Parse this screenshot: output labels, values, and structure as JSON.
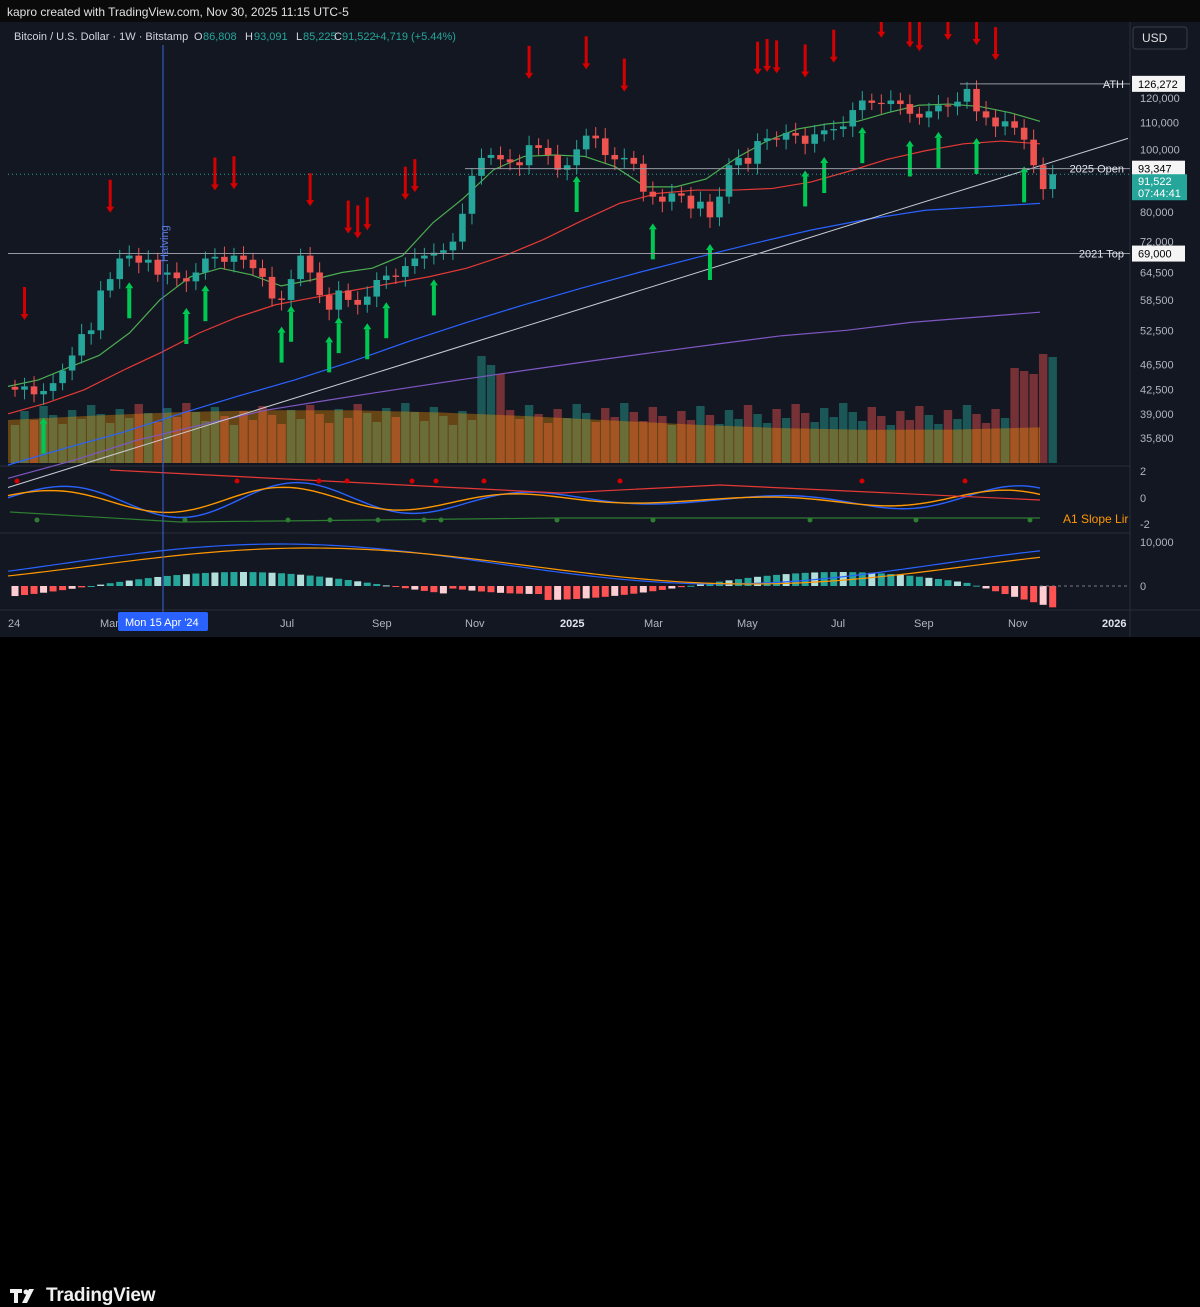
{
  "credit": "kapro created with TradingView.com, Nov 30, 2025 11:15 UTC-5",
  "brand": "TradingView",
  "symbol_header": {
    "name": "Bitcoin / U.S. Dollar · 1W · Bitstamp",
    "open_label": "O",
    "open": "86,808",
    "high_label": "H",
    "high": "93,091",
    "low_label": "L",
    "low": "85,225",
    "close_label": "C",
    "close": "91,522",
    "change": "+4,719 (+5.44%)"
  },
  "currency_button": "USD",
  "halving_label": "Halving",
  "indicator_label": "A1 Slope Lir",
  "chart_data": {
    "type": "candlestick",
    "timeframe": "1W",
    "price_axis": {
      "scale": "log",
      "ticks": [
        120000,
        110000,
        100000,
        80000,
        72000,
        64500,
        58500,
        52500,
        46500,
        42500,
        39000,
        35800
      ],
      "tick_labels": [
        "120,000",
        "110,000",
        "100,000",
        "80,000",
        "72,000",
        "64,500",
        "58,500",
        "52,500",
        "46,500",
        "42,500",
        "39,000",
        "35,800"
      ]
    },
    "time_axis": [
      "24",
      "Mar",
      "Jul",
      "Sep",
      "Nov",
      "2025",
      "Mar",
      "May",
      "Jul",
      "Sep",
      "Nov",
      "2026"
    ],
    "crosshair_date": "Mon 15 Apr '24",
    "levels": [
      {
        "label": "ATH",
        "value": 126272,
        "value_label": "126,272"
      },
      {
        "label": "2025 Open",
        "value": 93347,
        "value_label": "93,347"
      },
      {
        "label": "2021 Top",
        "value": 69000,
        "value_label": "69,000"
      }
    ],
    "current_price": {
      "value": 91522,
      "label": "91,522",
      "countdown": "07:44:41"
    },
    "weekly_closes": [
      42500,
      43000,
      41800,
      42300,
      43500,
      45500,
      48000,
      51800,
      52500,
      60500,
      63000,
      67800,
      68500,
      66800,
      67500,
      64000,
      64500,
      63200,
      62500,
      64500,
      67800,
      68200,
      67000,
      68500,
      67500,
      65500,
      63500,
      58800,
      58500,
      63000,
      68500,
      64500,
      59500,
      56500,
      60500,
      58500,
      57500,
      59200,
      62800,
      63800,
      63500,
      66000,
      67800,
      68500,
      69200,
      69800,
      72000,
      79500,
      91000,
      97000,
      98000,
      96500,
      95500,
      94500,
      101500,
      100500,
      98000,
      93000,
      94500,
      100000,
      105000,
      104000,
      98000,
      96500,
      97000,
      95000,
      86000,
      84500,
      83000,
      85500,
      84800,
      81000,
      83000,
      78500,
      84500,
      94500,
      97000,
      95000,
      103000,
      104000,
      103500,
      106000,
      105000,
      102000,
      105500,
      107000,
      107500,
      108500,
      115000,
      119000,
      118000,
      117500,
      119000,
      117500,
      113500,
      112000,
      114500,
      117000,
      116500,
      118500,
      124000,
      114500,
      112000,
      108500,
      110500,
      108000,
      103500,
      94500,
      86800,
      91522
    ],
    "sma_20_levels": [
      43000,
      44000,
      46000,
      48000,
      52000,
      58500,
      63500,
      65500,
      64000,
      61500,
      62800,
      64500,
      65500,
      68500,
      77000,
      84000,
      93000,
      97500,
      98000,
      97500,
      94000,
      87500,
      87500,
      90000,
      97000,
      103000,
      107500,
      109500,
      110500,
      114000,
      117000,
      117500,
      116500,
      114000,
      110500
    ],
    "sma_50_levels": [
      39000,
      40500,
      42500,
      45500,
      48500,
      52000,
      55000,
      57500,
      59000,
      60500,
      62000,
      63500,
      65500,
      68500,
      72500,
      77500,
      82500,
      85500,
      86500,
      86500,
      87000,
      89000,
      92500,
      96500,
      99500,
      102000,
      103000,
      102000
    ],
    "sma_100_levels": [
      32500,
      34500,
      36500,
      39000,
      41500,
      44000,
      47000,
      50500,
      54000,
      57500,
      61000,
      64500,
      68000,
      71500,
      75000,
      78000,
      80500,
      81500,
      82500
    ],
    "sma_200_levels": [
      31000,
      33000,
      35500,
      37500,
      39500,
      41000,
      42500,
      44000,
      45500,
      47000,
      48500,
      50000,
      51500,
      52500,
      54000,
      55000,
      56000
    ],
    "trendline_levels": [
      30000,
      38000,
      48000,
      60000,
      75000,
      90000,
      104000
    ],
    "signals": {
      "sell_arrows": 26,
      "buy_arrows": 30
    },
    "oscillator": {
      "axis_labels": [
        "2",
        "0",
        "-2"
      ]
    },
    "macd_panel": {
      "axis_labels": [
        "10,000",
        "0"
      ]
    }
  }
}
